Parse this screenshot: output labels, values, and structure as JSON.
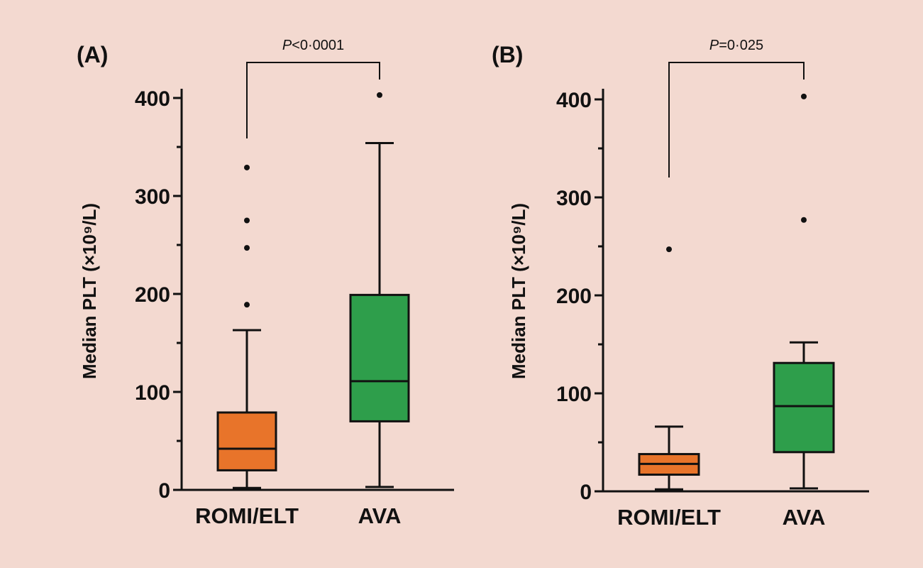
{
  "colors": {
    "background": "#f3d9d0",
    "romi_elt": "#e8742a",
    "ava": "#2e9e4b",
    "ink": "#111111"
  },
  "chart_data": [
    {
      "type": "box",
      "panel_label": "(A)",
      "ylabel": "Median PLT (×10⁹/L)",
      "ylim": [
        0,
        420
      ],
      "yticks": [
        0,
        100,
        200,
        300,
        400
      ],
      "ytick_labels": [
        "0",
        "100",
        "200",
        "300",
        "400"
      ],
      "categories": [
        "ROMI/ELT",
        "AVA"
      ],
      "boxes": [
        {
          "name": "ROMI/ELT",
          "color": "#e8742a",
          "whisker_low": 2,
          "q1": 20,
          "median": 42,
          "q3": 79,
          "whisker_high": 163,
          "outliers": [
            189,
            247,
            275,
            329
          ]
        },
        {
          "name": "AVA",
          "color": "#2e9e4b",
          "whisker_low": 3,
          "q1": 70,
          "median": 111,
          "q3": 199,
          "whisker_high": 354,
          "outliers": [
            403
          ]
        }
      ],
      "comparison": {
        "prefix": "P",
        "rest": "<0·0001"
      }
    },
    {
      "type": "box",
      "panel_label": "(B)",
      "ylabel": "Median PLT (×10⁹/L)",
      "ylim": [
        0,
        420
      ],
      "yticks": [
        0,
        100,
        200,
        300,
        400
      ],
      "ytick_labels": [
        "0",
        "100",
        "200",
        "300",
        "400"
      ],
      "categories": [
        "ROMI/ELT",
        "AVA"
      ],
      "boxes": [
        {
          "name": "ROMI/ELT",
          "color": "#e8742a",
          "whisker_low": 2,
          "q1": 17,
          "median": 28,
          "q3": 38,
          "whisker_high": 66,
          "outliers": [
            247
          ]
        },
        {
          "name": "AVA",
          "color": "#2e9e4b",
          "whisker_low": 3,
          "q1": 40,
          "median": 87,
          "q3": 131,
          "whisker_high": 152,
          "outliers": [
            277,
            403
          ]
        }
      ],
      "comparison": {
        "prefix": "P",
        "rest": "=0·025"
      }
    }
  ]
}
